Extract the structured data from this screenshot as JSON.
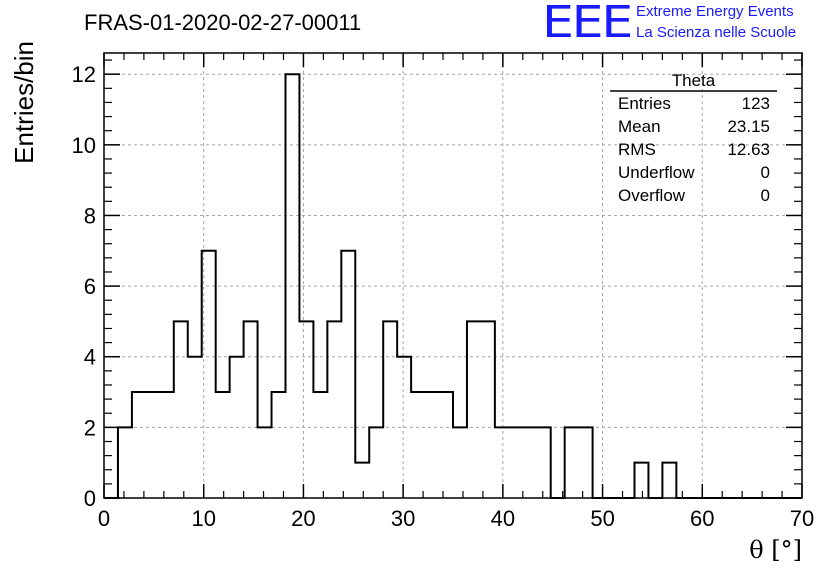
{
  "header": {
    "run_title": "FRAS-01-2020-02-27-00011",
    "logo_text": "EEE",
    "logo_line1": "Extreme Energy Events",
    "logo_line2": "La Scienza nelle Scuole",
    "logo_color": "#1a1aff"
  },
  "stats_box": {
    "title": "Theta",
    "rows": [
      {
        "label": "Entries",
        "value": "123"
      },
      {
        "label": "Mean",
        "value": "23.15"
      },
      {
        "label": "RMS",
        "value": "12.63"
      },
      {
        "label": "Underflow",
        "value": "0"
      },
      {
        "label": "Overflow",
        "value": "0"
      }
    ]
  },
  "chart_data": {
    "type": "histogram",
    "xlabel": "θ [°]",
    "ylabel": "Entries/bin",
    "xlim": [
      0,
      70
    ],
    "ylim": [
      0,
      12.6
    ],
    "x_ticks": [
      0,
      10,
      20,
      30,
      40,
      50,
      60,
      70
    ],
    "y_ticks": [
      0,
      2,
      4,
      6,
      8,
      10,
      12
    ],
    "grid": true,
    "bin_width": 1.4,
    "bin_start": 0,
    "values": [
      0,
      2,
      3,
      3,
      3,
      5,
      4,
      7,
      3,
      4,
      5,
      2,
      3,
      12,
      5,
      3,
      5,
      7,
      1,
      2,
      5,
      4,
      3,
      3,
      3,
      2,
      5,
      5,
      2,
      2,
      2,
      2,
      0,
      2,
      2,
      0,
      0,
      0,
      1,
      0,
      1,
      0,
      0,
      0,
      0,
      0,
      0,
      0,
      0,
      0
    ],
    "line_color": "#000000"
  }
}
